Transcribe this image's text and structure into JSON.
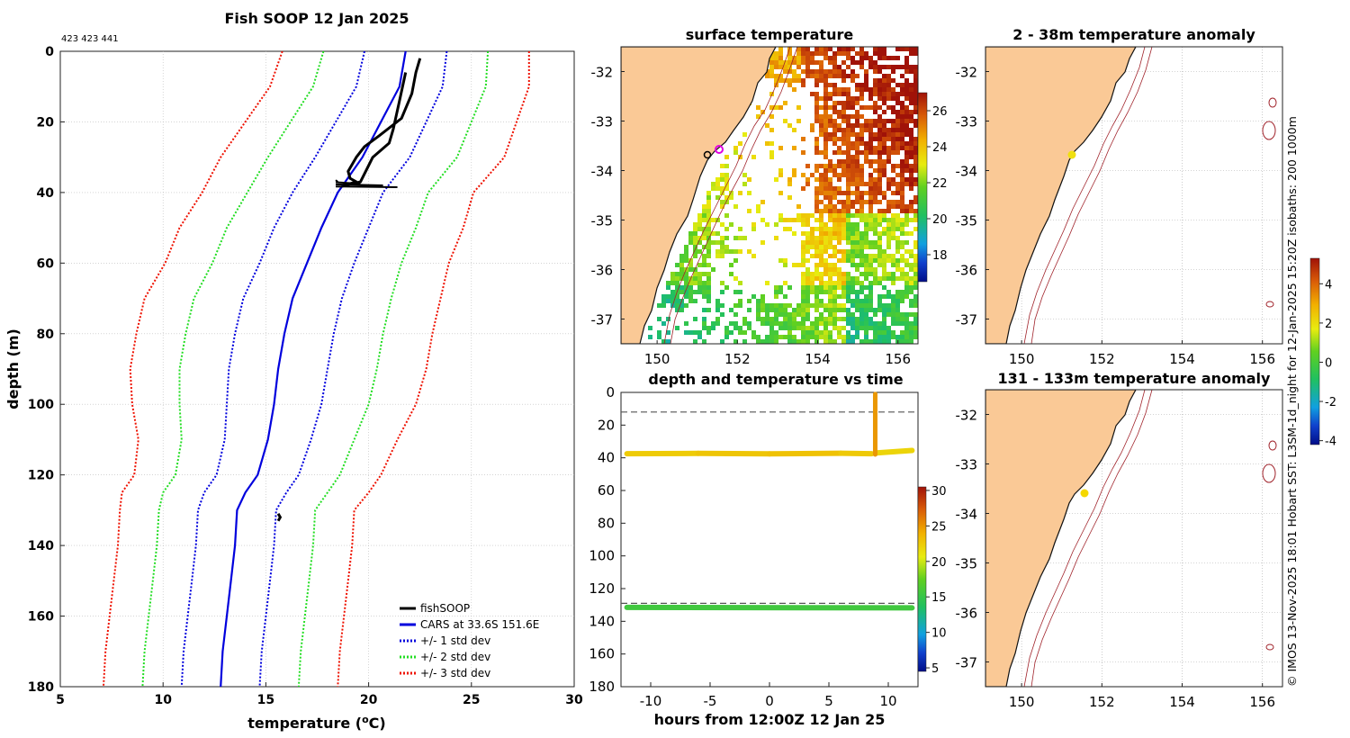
{
  "figure": {
    "title": "Fish SOOP 12 Jan 2025",
    "id_tag": "423 423 441",
    "side_caption": "© IMOS 13-Nov-2025 18:01 Hobart SST: L3SM-1d_night for 12-Jan-2025 15:20Z isobaths: 200  1000m"
  },
  "colors": {
    "fishsoop": "#000000",
    "cars": "#0000dd",
    "std1": "#0000dd",
    "std2": "#22dd22",
    "std3": "#ee1100",
    "land": "#fac996",
    "isobath": "#a0222a"
  },
  "chart_data": [
    {
      "type": "line",
      "title": "Fish SOOP 12 Jan 2025",
      "xlabel": "temperature (°C)",
      "ylabel": "depth (m)",
      "xlim": [
        5,
        30
      ],
      "ylim": [
        0,
        180
      ],
      "y_reversed": true,
      "xticks": [
        5,
        10,
        15,
        20,
        25,
        30
      ],
      "yticks": [
        0,
        20,
        40,
        60,
        80,
        100,
        120,
        140,
        160,
        180
      ],
      "grid": true,
      "legend_position": "bottom-right",
      "depth": [
        0,
        10,
        20,
        30,
        40,
        50,
        60,
        70,
        80,
        90,
        100,
        110,
        120,
        125,
        130,
        140,
        150,
        160,
        170,
        180
      ],
      "cars_mean": [
        21.8,
        21.5,
        20.6,
        19.7,
        18.5,
        17.7,
        17.0,
        16.3,
        15.9,
        15.6,
        15.4,
        15.1,
        14.6,
        14.0,
        13.6,
        13.5,
        13.3,
        13.1,
        12.9,
        12.8
      ],
      "cars_std": [
        2.0,
        2.1,
        2.2,
        2.3,
        2.2,
        2.3,
        2.3,
        2.4,
        2.4,
        2.4,
        2.3,
        2.1,
        2.0,
        2.0,
        1.9,
        1.9,
        1.9,
        1.9,
        1.9,
        1.9
      ],
      "series": [
        {
          "name": "fishSOOP",
          "style": "solid",
          "color_key": "fishsoop"
        },
        {
          "name": "CARS at 33.6S 151.6E",
          "style": "solid",
          "color_key": "cars"
        },
        {
          "name": "+/- 1 std dev",
          "style": "dotted",
          "color_key": "std1"
        },
        {
          "name": "+/- 2 std dev",
          "style": "dotted",
          "color_key": "std2"
        },
        {
          "name": "+/- 3 std dev",
          "style": "dotted",
          "color_key": "std3"
        }
      ],
      "fishsoop_profile": {
        "temperature": [
          22.5,
          22.3,
          22.1,
          21.6,
          20.5,
          19.8,
          19.4,
          19.0,
          19.1,
          19.4,
          18.8,
          19.6,
          20.2,
          21.0,
          21.2,
          21.5,
          21.8
        ],
        "depth": [
          2,
          6,
          12,
          19,
          24,
          27,
          30,
          34,
          36,
          37,
          38,
          37,
          30,
          26,
          22,
          14,
          6
        ]
      },
      "fishsoop_deep": {
        "temperature": [
          15.6,
          15.7,
          15.6
        ],
        "depth": [
          131,
          132,
          133
        ]
      }
    },
    {
      "type": "heatmap",
      "title": "surface temperature",
      "xticks": [
        150,
        152,
        154,
        156
      ],
      "yticks": [
        -32,
        -33,
        -34,
        -35,
        -36,
        -37
      ],
      "xlim": [
        149.1,
        156.5
      ],
      "ylim": [
        -37.5,
        -31.5
      ],
      "colorbar": {
        "min": 16.5,
        "max": 27,
        "ticks": [
          18,
          20,
          22,
          24,
          26
        ]
      },
      "markers": [
        {
          "lon": 151.6,
          "lat": -33.6,
          "kind": "magenta circle"
        },
        {
          "lon": 150.85,
          "lat": -33.7,
          "kind": "black circle"
        }
      ]
    },
    {
      "type": "scatter",
      "title": "2 - 38m temperature anomaly",
      "xticks": [
        150,
        152,
        154,
        156
      ],
      "yticks": [
        -32,
        -33,
        -34,
        -35,
        -36,
        -37
      ],
      "xlim": [
        149.1,
        156.5
      ],
      "ylim": [
        -37.5,
        -31.5
      ],
      "points": [
        {
          "lon": 151.35,
          "lat": -33.7,
          "anomaly": 2.5
        }
      ]
    },
    {
      "type": "scatter",
      "title": "131 - 133m temperature anomaly",
      "xticks": [
        150,
        152,
        154,
        156
      ],
      "yticks": [
        -32,
        -33,
        -34,
        -35,
        -36,
        -37
      ],
      "xlim": [
        149.1,
        156.5
      ],
      "ylim": [
        -37.5,
        -31.5
      ],
      "points": [
        {
          "lon": 151.6,
          "lat": -33.6,
          "anomaly": 3.0
        }
      ],
      "colorbar": {
        "min": -4.2,
        "max": 5.3,
        "ticks": [
          4,
          2,
          0,
          -2,
          -4
        ]
      }
    },
    {
      "type": "scatter",
      "title": "depth and temperature vs time",
      "xlabel": "hours from 12:00Z 12 Jan 25",
      "xlim": [
        -12.5,
        12.5
      ],
      "ylim": [
        0,
        180
      ],
      "y_reversed": true,
      "xticks": [
        -10,
        -5,
        0,
        5,
        10
      ],
      "yticks": [
        0,
        20,
        40,
        60,
        80,
        100,
        120,
        140,
        160,
        180
      ],
      "dashed_levels": [
        12,
        129
      ],
      "shallow_track": {
        "time": [
          -12,
          -6,
          0,
          6,
          8.6
        ],
        "depth": [
          37.5,
          37.3,
          37.6,
          37.2,
          37.5
        ],
        "temperature": [
          22.5,
          22.8,
          23.0,
          22.6,
          22.3
        ]
      },
      "cast": {
        "time": 8.9,
        "depth_start": 38,
        "depth_end": 1,
        "temperature": 25
      },
      "shallow_track_after": {
        "time": [
          9.0,
          12
        ],
        "depth": [
          37,
          35.5
        ],
        "temperature": [
          22.0,
          21.8
        ]
      },
      "deep_track": {
        "time": [
          -12,
          12
        ],
        "depth": [
          131.5,
          131.8
        ],
        "temperature": 15.6
      },
      "colorbar": {
        "min": 4.5,
        "max": 30.5,
        "ticks": [
          30,
          25,
          20,
          15,
          10,
          5
        ]
      }
    }
  ]
}
